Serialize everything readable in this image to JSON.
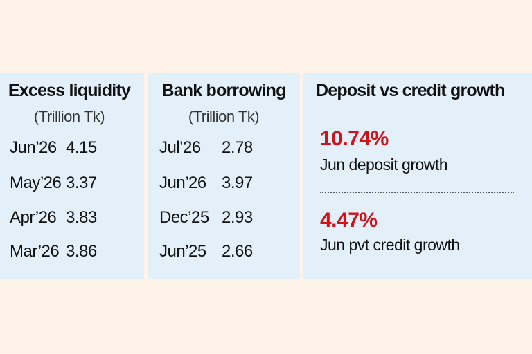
{
  "panels": [
    {
      "title": "Excess liquidity",
      "subtitle": "(Trillion Tk)",
      "rows": [
        [
          "Jun’26",
          "4.15"
        ],
        [
          "May’26",
          "3.37"
        ],
        [
          "Apr’26",
          "3.83"
        ],
        [
          "Mar’26",
          "3.86"
        ]
      ]
    },
    {
      "title": "Bank borrowing",
      "subtitle": "(Trillion Tk)",
      "rows": [
        [
          "Jul’26",
          "2.78"
        ],
        [
          "Jun’26",
          "3.97"
        ],
        [
          "Dec’25",
          "2.93"
        ],
        [
          "Jun’25",
          "2.66"
        ]
      ]
    }
  ],
  "growth": {
    "title": "Deposit vs credit growth",
    "items": [
      {
        "value": "10.74%",
        "label": "Jun deposit growth"
      },
      {
        "value": "4.47%",
        "label": "Jun pvt credit growth"
      }
    ]
  }
}
